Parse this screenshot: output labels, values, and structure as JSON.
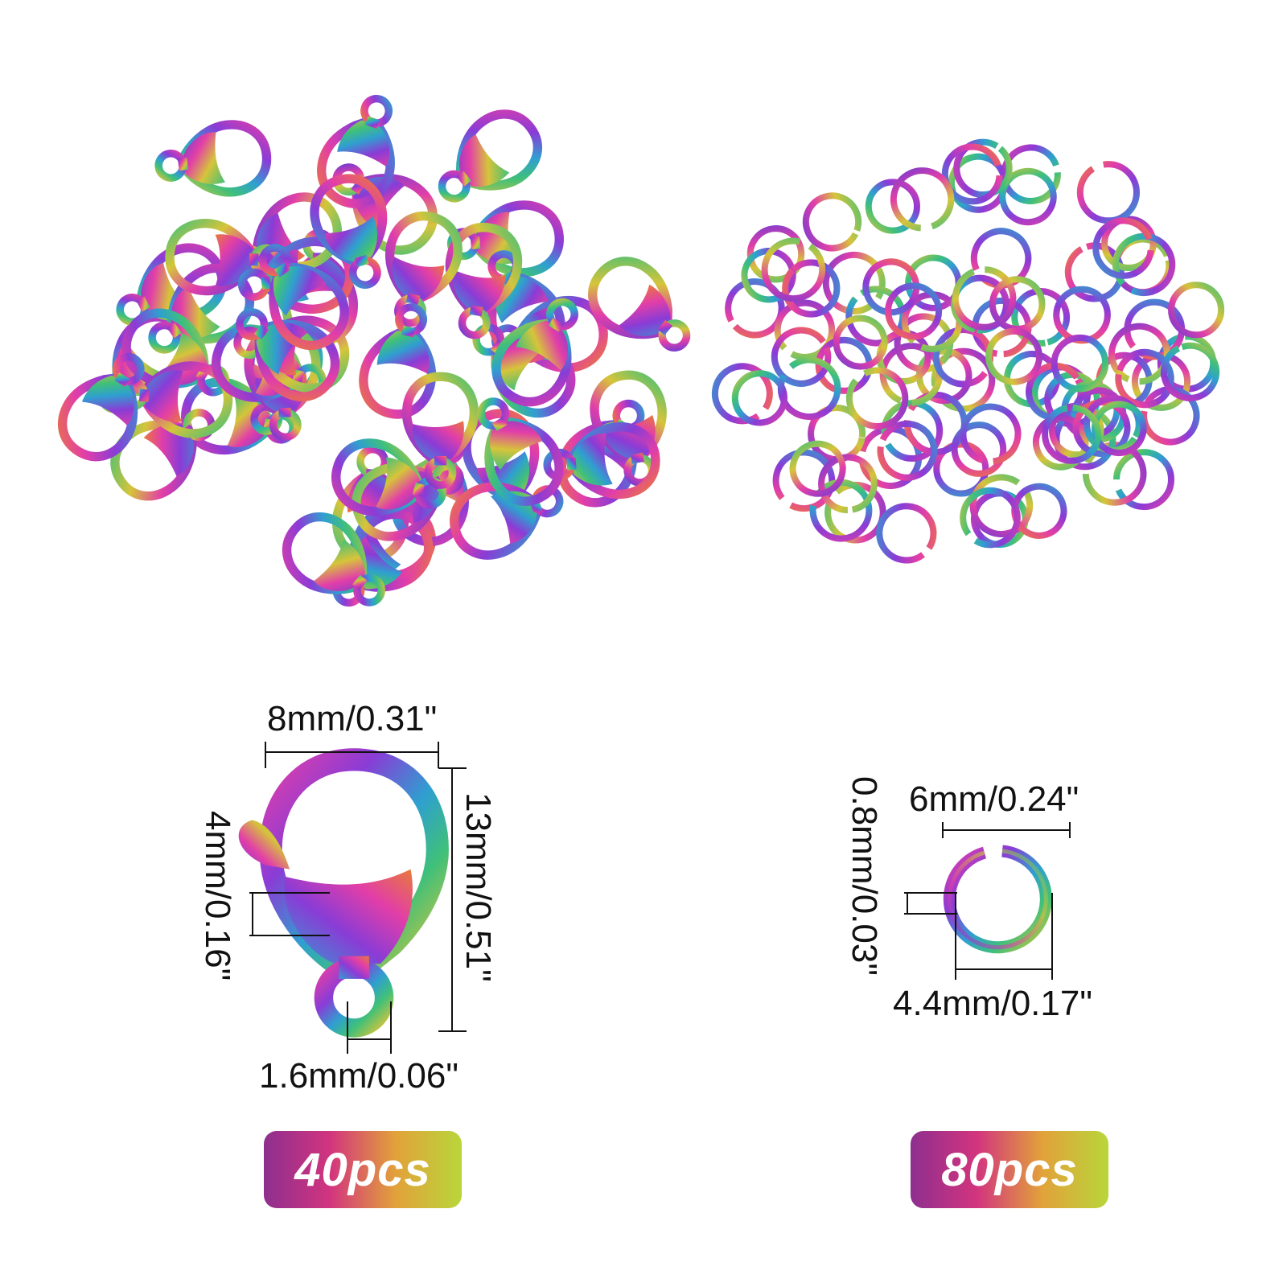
{
  "colors": {
    "background": "#ffffff",
    "badge_gradient": [
      "#8e2f8f",
      "#d2347e",
      "#e2a23a",
      "#b8d63a"
    ],
    "metal_rainbow": [
      "#e23ea8",
      "#8a3cd6",
      "#2f9fd0",
      "#3fc07a",
      "#d6c43a",
      "#e87a3a"
    ],
    "dimension_lines": "#111111"
  },
  "clasps": {
    "count_label": "40pcs",
    "dimensions": {
      "width": "8mm/0.31\"",
      "height": "13mm/0.51\"",
      "body": "4mm/0.16\"",
      "hole": "1.6mm/0.06\""
    }
  },
  "rings": {
    "count_label": "80pcs",
    "dimensions": {
      "outer": "6mm/0.24\"",
      "inner": "4.4mm/0.17\"",
      "wire": "0.8mm/0.03\""
    }
  }
}
